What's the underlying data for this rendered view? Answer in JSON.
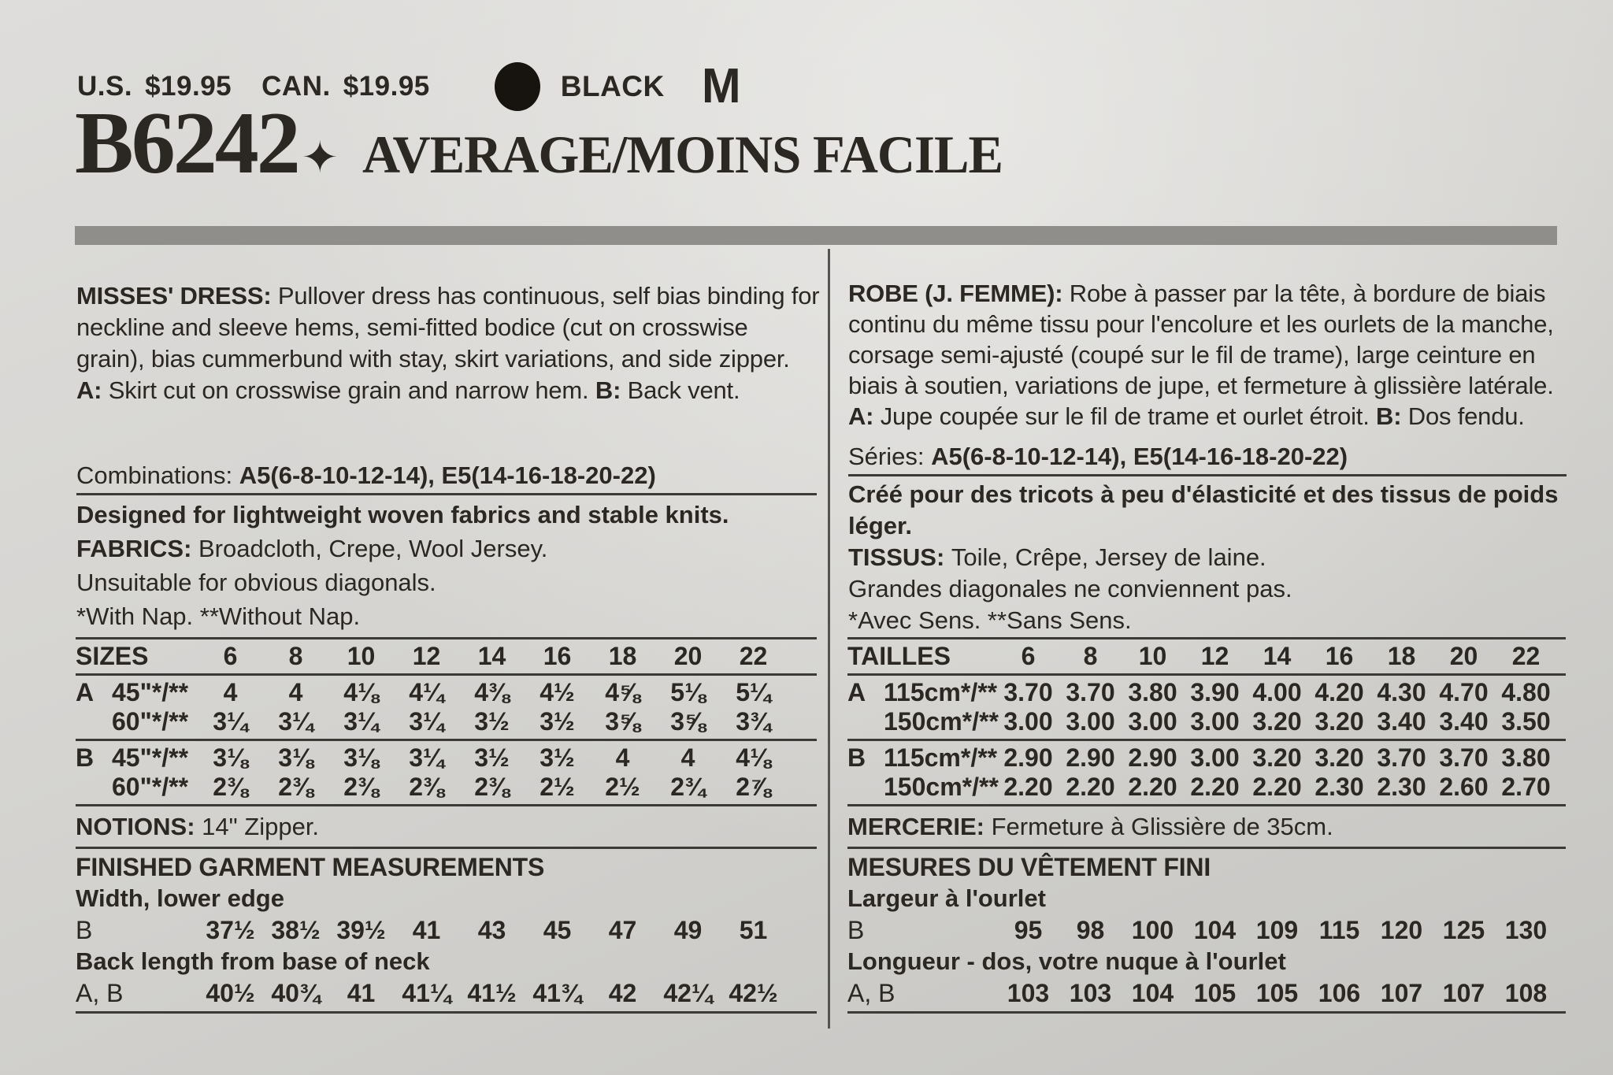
{
  "colors": {
    "paper": "#d5d4d1",
    "ink": "#2b2823",
    "rule": "#3c3a36",
    "bar": "#8f8e8a"
  },
  "price": {
    "us_label": "U.S.",
    "us_value": "$19.95",
    "can_label": "CAN.",
    "can_value": "$19.95",
    "color_name": "BLACK",
    "letter": "M"
  },
  "title": {
    "number": "B6242",
    "diamond": "✦",
    "label": "AVERAGE/MOINS FACILE"
  },
  "english": {
    "description": [
      {
        "b": 1,
        "t": "MISSES' DRESS: "
      },
      {
        "t": "Pullover dress has continuous, self bias binding for neckline and sleeve hems, semi-fitted bodice (cut on crosswise grain), bias cummerbund with stay, skirt variations, and side zipper. "
      },
      {
        "b": 1,
        "t": "A: "
      },
      {
        "t": "Skirt cut on crosswise grain and narrow hem. "
      },
      {
        "b": 1,
        "t": "B: "
      },
      {
        "t": "Back vent."
      }
    ],
    "combinations": [
      {
        "t": "Combinations: "
      },
      {
        "b": 1,
        "t": "A5(6-8-10-12-14), E5(14-16-18-20-22)"
      }
    ],
    "designed": "Designed for lightweight woven fabrics and stable knits.",
    "fabrics": [
      {
        "b": 1,
        "t": "FABRICS: "
      },
      {
        "t": "Broadcloth, Crepe, Wool Jersey."
      }
    ],
    "unsuitable": "Unsuitable for obvious diagonals.",
    "nap": "*With Nap. **Without Nap.",
    "notions": [
      {
        "b": 1,
        "t": "NOTIONS: "
      },
      {
        "t": "14\" Zipper."
      }
    ]
  },
  "french": {
    "description": [
      {
        "b": 1,
        "t": "ROBE (J. FEMME): "
      },
      {
        "t": "Robe à passer par la tête, à bordure de biais continu du même tissu pour l'encolure et les ourlets de la manche, corsage semi-ajusté (coupé sur le fil de trame), large ceinture en biais à soutien, variations de jupe, et fermeture à glissière latérale. "
      },
      {
        "b": 1,
        "t": "A: "
      },
      {
        "t": "Jupe coupée sur le fil de trame et ourlet étroit. "
      },
      {
        "b": 1,
        "t": "B: "
      },
      {
        "t": "Dos fendu."
      }
    ],
    "combinations": [
      {
        "t": "Séries: "
      },
      {
        "b": 1,
        "t": "A5(6-8-10-12-14), E5(14-16-18-20-22)"
      }
    ],
    "designed": "Créé pour des tricots à peu d'élasticité et des tissus de poids léger.",
    "fabrics": [
      {
        "b": 1,
        "t": "TISSUS: "
      },
      {
        "t": "Toile, Crêpe, Jersey de laine."
      }
    ],
    "unsuitable": "Grandes diagonales ne conviennent pas.",
    "nap": "*Avec Sens. **Sans Sens.",
    "notions": [
      {
        "b": 1,
        "t": "MERCERIE: "
      },
      {
        "t": "Fermeture à Glissière de 35cm."
      }
    ]
  },
  "sizes_en": {
    "header_label": "SIZES",
    "columns": [
      "6",
      "8",
      "10",
      "12",
      "14",
      "16",
      "18",
      "20",
      "22"
    ],
    "rows": [
      {
        "view": "A",
        "width": "45\"*/**",
        "values": [
          "4",
          "4",
          "4⅛",
          "4¼",
          "4⅜",
          "4½",
          "4⅝",
          "5⅛",
          "5¼"
        ]
      },
      {
        "view": "",
        "width": "60\"*/**",
        "values": [
          "3¼",
          "3¼",
          "3¼",
          "3¼",
          "3½",
          "3½",
          "3⅝",
          "3⅝",
          "3¾"
        ]
      },
      {
        "view": "B",
        "width": "45\"*/**",
        "rule_above": true,
        "values": [
          "3⅛",
          "3⅛",
          "3⅛",
          "3¼",
          "3½",
          "3½",
          "4",
          "4",
          "4⅛"
        ]
      },
      {
        "view": "",
        "width": "60\"*/**",
        "values": [
          "2⅜",
          "2⅜",
          "2⅜",
          "2⅜",
          "2⅜",
          "2½",
          "2½",
          "2¾",
          "2⅞"
        ]
      }
    ]
  },
  "sizes_fr": {
    "header_label": "TAILLES",
    "columns": [
      "6",
      "8",
      "10",
      "12",
      "14",
      "16",
      "18",
      "20",
      "22"
    ],
    "rows": [
      {
        "view": "A",
        "width": "115cm*/**",
        "values": [
          "3.70",
          "3.70",
          "3.80",
          "3.90",
          "4.00",
          "4.20",
          "4.30",
          "4.70",
          "4.80"
        ]
      },
      {
        "view": "",
        "width": "150cm*/**",
        "values": [
          "3.00",
          "3.00",
          "3.00",
          "3.00",
          "3.20",
          "3.20",
          "3.40",
          "3.40",
          "3.50"
        ]
      },
      {
        "view": "B",
        "width": "115cm*/**",
        "rule_above": true,
        "values": [
          "2.90",
          "2.90",
          "2.90",
          "3.00",
          "3.20",
          "3.20",
          "3.70",
          "3.70",
          "3.80"
        ]
      },
      {
        "view": "",
        "width": "150cm*/**",
        "values": [
          "2.20",
          "2.20",
          "2.20",
          "2.20",
          "2.20",
          "2.30",
          "2.30",
          "2.60",
          "2.70"
        ]
      }
    ]
  },
  "measures_en": {
    "title": "FINISHED GARMENT MEASUREMENTS",
    "sections": [
      {
        "label": "Width, lower edge",
        "row": "B",
        "values": [
          "37½",
          "38½",
          "39½",
          "41",
          "43",
          "45",
          "47",
          "49",
          "51"
        ]
      },
      {
        "label": "Back length from base of neck",
        "row": "A, B",
        "values": [
          "40½",
          "40¾",
          "41",
          "41¼",
          "41½",
          "41¾",
          "42",
          "42¼",
          "42½"
        ]
      }
    ]
  },
  "measures_fr": {
    "title": "MESURES DU VÊTEMENT FINI",
    "sections": [
      {
        "label": "Largeur à l'ourlet",
        "row": "B",
        "values": [
          "95",
          "98",
          "100",
          "104",
          "109",
          "115",
          "120",
          "125",
          "130"
        ]
      },
      {
        "label": "Longueur - dos, votre nuque à l'ourlet",
        "row": "A, B",
        "values": [
          "103",
          "103",
          "104",
          "105",
          "105",
          "106",
          "107",
          "107",
          "108"
        ]
      }
    ]
  }
}
